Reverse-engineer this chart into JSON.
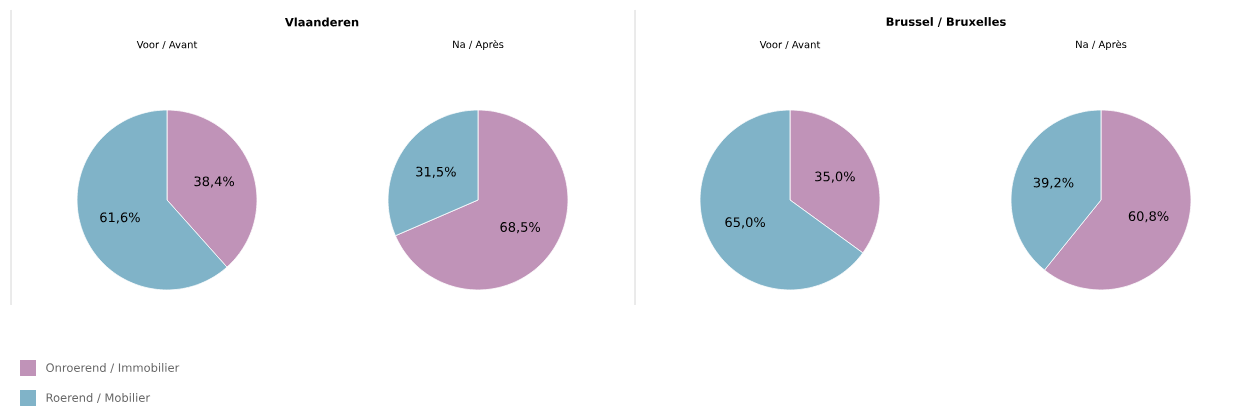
{
  "chart_data": [
    {
      "type": "pie",
      "title": "Vlaanderen",
      "subtitle": "Voor / Avant",
      "categories": [
        "Onroerend / Immobilier",
        "Roerend / Mobilier"
      ],
      "values": [
        38.4,
        61.6
      ],
      "value_labels": [
        "38,4%",
        "61,6%"
      ],
      "colors": [
        "#c093b8",
        "#80b3c8"
      ],
      "legend": "bottom left"
    },
    {
      "type": "pie",
      "subtitle": "Na / Après",
      "categories": [
        null,
        null
      ],
      "values": [
        68.5,
        31.5
      ],
      "value_labels": [
        "68,5%",
        "31,5%"
      ],
      "colors": [
        "#c093b8",
        "#80b3c8"
      ]
    },
    {
      "type": "pie",
      "title": "Brussel / Bruxelles",
      "subtitle": "Voor / Avant",
      "categories": [
        null,
        null
      ],
      "values": [
        35.0,
        65.0
      ],
      "value_labels": [
        "35,0%",
        "65,0%"
      ],
      "colors": [
        "#c093b8",
        "#80b3c8"
      ]
    },
    {
      "type": "pie",
      "subtitle": "Na / Après",
      "categories": [
        null,
        null
      ],
      "values": [
        60.8,
        39.2
      ],
      "value_labels": [
        "60,8%",
        "39,2%"
      ],
      "colors": [
        "#c093b8",
        "#80b3c8"
      ]
    }
  ]
}
